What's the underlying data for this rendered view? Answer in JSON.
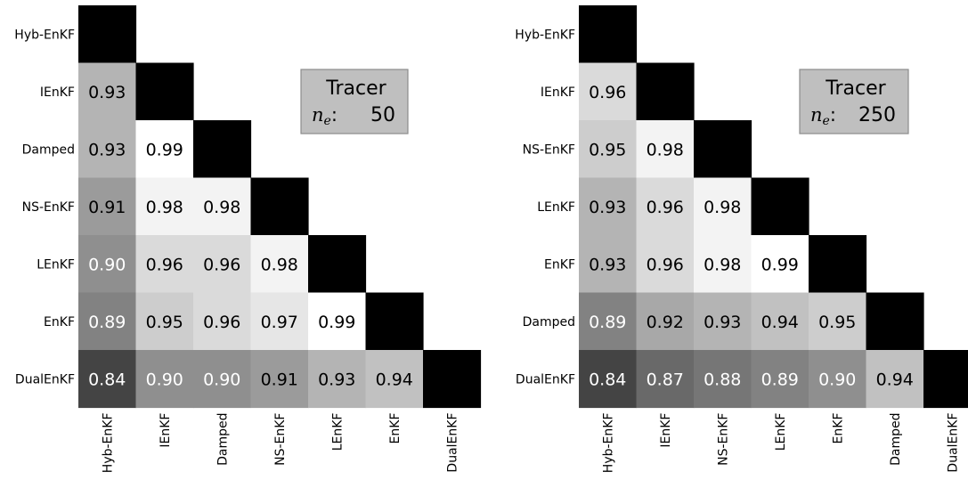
{
  "chart_data": [
    {
      "type": "heatmap",
      "shape": "lower-triangle",
      "row_labels": [
        "Hyb-EnKF",
        "IEnKF",
        "Damped",
        "NS-EnKF",
        "LEnKF",
        "EnKF",
        "DualEnKF"
      ],
      "col_labels": [
        "Hyb-EnKF",
        "IEnKF",
        "Damped",
        "NS-EnKF",
        "LEnKF",
        "EnKF",
        "DualEnKF"
      ],
      "values": [
        [
          null,
          null,
          null,
          null,
          null,
          null,
          null
        ],
        [
          0.93,
          null,
          null,
          null,
          null,
          null,
          null
        ],
        [
          0.93,
          0.99,
          null,
          null,
          null,
          null,
          null
        ],
        [
          0.91,
          0.98,
          0.98,
          null,
          null,
          null,
          null
        ],
        [
          0.9,
          0.96,
          0.96,
          0.98,
          null,
          null,
          null
        ],
        [
          0.89,
          0.95,
          0.96,
          0.97,
          0.99,
          null,
          null
        ],
        [
          0.84,
          0.9,
          0.9,
          0.91,
          0.93,
          0.94,
          null
        ]
      ],
      "legend_box": {
        "title": "Tracer",
        "ne_value": "50",
        "placement": "top-right"
      },
      "colormap": {
        "min_color": "#444444",
        "max_color": "#ffffff",
        "diagonal_color": "#000000"
      }
    },
    {
      "type": "heatmap",
      "shape": "lower-triangle",
      "row_labels": [
        "Hyb-EnKF",
        "IEnKF",
        "NS-EnKF",
        "LEnKF",
        "EnKF",
        "Damped",
        "DualEnKF"
      ],
      "col_labels": [
        "Hyb-EnKF",
        "IEnKF",
        "NS-EnKF",
        "LEnKF",
        "EnKF",
        "Damped",
        "DualEnKF"
      ],
      "values": [
        [
          null,
          null,
          null,
          null,
          null,
          null,
          null
        ],
        [
          0.96,
          null,
          null,
          null,
          null,
          null,
          null
        ],
        [
          0.95,
          0.98,
          null,
          null,
          null,
          null,
          null
        ],
        [
          0.93,
          0.96,
          0.98,
          null,
          null,
          null,
          null
        ],
        [
          0.93,
          0.96,
          0.98,
          0.99,
          null,
          null,
          null
        ],
        [
          0.89,
          0.92,
          0.93,
          0.94,
          0.95,
          null,
          null
        ],
        [
          0.84,
          0.87,
          0.88,
          0.89,
          0.9,
          0.94,
          null
        ]
      ],
      "legend_box": {
        "title": "Tracer",
        "ne_value": "250",
        "placement": "top-right"
      },
      "colormap": {
        "min_color": "#444444",
        "max_color": "#ffffff",
        "diagonal_color": "#000000"
      }
    }
  ]
}
